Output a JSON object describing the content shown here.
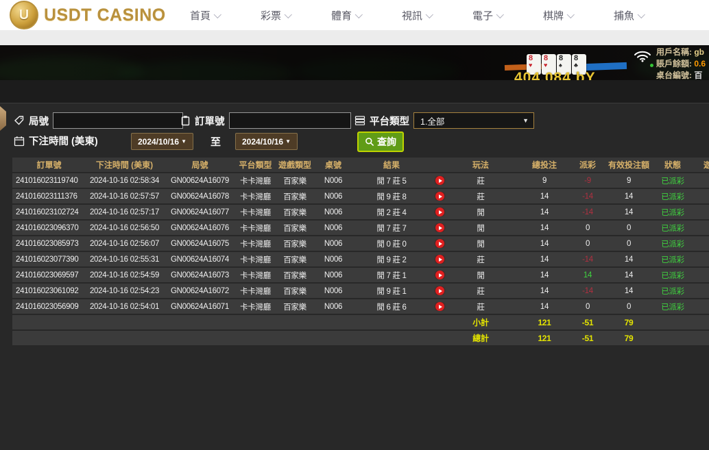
{
  "nav": {
    "logo": {
      "letter": "U",
      "text": "USDT CASINO"
    },
    "items": [
      {
        "label": "首頁"
      },
      {
        "label": "彩票"
      },
      {
        "label": "體育"
      },
      {
        "label": "視訊"
      },
      {
        "label": "電子"
      },
      {
        "label": "棋牌"
      },
      {
        "label": "捕魚"
      }
    ]
  },
  "banner": {
    "cards": [
      {
        "rank": "8",
        "suit": "♥"
      },
      {
        "rank": "8",
        "suit": "♥"
      },
      {
        "rank": "8",
        "suit": "♠"
      },
      {
        "rank": "8",
        "suit": "♣"
      }
    ],
    "amount_text": "404,084 bY",
    "info": {
      "user_label": "用戶名稱:",
      "user_value": "gb",
      "balance_label": "賬戶餘額:",
      "balance_value": "0.6",
      "table_label": "桌台編號:",
      "table_value": "百"
    }
  },
  "filters": {
    "round_label": "局號",
    "order_label": "訂單號",
    "platform_label": "平台類型",
    "platform_value": "1.全部",
    "time_label": "下注時間 (美東)",
    "date_from": "2024/10/16",
    "to_label": "至",
    "date_to": "2024/10/16",
    "search_label": "查詢",
    "caret": "▼"
  },
  "table": {
    "headers": [
      "訂單號",
      "下注時間 (美東)",
      "局號",
      "平台類型",
      "遊戲類型",
      "桌號",
      "結果",
      "",
      "玩法",
      "總投注",
      "派彩",
      "有效投注額",
      "狀態",
      "遊"
    ],
    "rows": [
      {
        "order_id": "241016023119740",
        "bet_time": "2024-10-16 02:58:34",
        "round_id": "GN00624A16079",
        "platform": "卡卡灣廳",
        "game_type": "百家樂",
        "table_no": "N006",
        "result": "閒 7 莊 5",
        "play": "莊",
        "total_bet": "9",
        "payout": "-9",
        "valid_bet": "9",
        "status": "已派彩"
      },
      {
        "order_id": "241016023111376",
        "bet_time": "2024-10-16 02:57:57",
        "round_id": "GN00624A16078",
        "platform": "卡卡灣廳",
        "game_type": "百家樂",
        "table_no": "N006",
        "result": "閒 9 莊 8",
        "play": "莊",
        "total_bet": "14",
        "payout": "-14",
        "valid_bet": "14",
        "status": "已派彩"
      },
      {
        "order_id": "241016023102724",
        "bet_time": "2024-10-16 02:57:17",
        "round_id": "GN00624A16077",
        "platform": "卡卡灣廳",
        "game_type": "百家樂",
        "table_no": "N006",
        "result": "閒 2 莊 4",
        "play": "閒",
        "total_bet": "14",
        "payout": "-14",
        "valid_bet": "14",
        "status": "已派彩"
      },
      {
        "order_id": "241016023096370",
        "bet_time": "2024-10-16 02:56:50",
        "round_id": "GN00624A16076",
        "platform": "卡卡灣廳",
        "game_type": "百家樂",
        "table_no": "N006",
        "result": "閒 7 莊 7",
        "play": "閒",
        "total_bet": "14",
        "payout": "0",
        "valid_bet": "0",
        "status": "已派彩"
      },
      {
        "order_id": "241016023085973",
        "bet_time": "2024-10-16 02:56:07",
        "round_id": "GN00624A16075",
        "platform": "卡卡灣廳",
        "game_type": "百家樂",
        "table_no": "N006",
        "result": "閒 0 莊 0",
        "play": "閒",
        "total_bet": "14",
        "payout": "0",
        "valid_bet": "0",
        "status": "已派彩"
      },
      {
        "order_id": "241016023077390",
        "bet_time": "2024-10-16 02:55:31",
        "round_id": "GN00624A16074",
        "platform": "卡卡灣廳",
        "game_type": "百家樂",
        "table_no": "N006",
        "result": "閒 9 莊 2",
        "play": "莊",
        "total_bet": "14",
        "payout": "-14",
        "valid_bet": "14",
        "status": "已派彩"
      },
      {
        "order_id": "241016023069597",
        "bet_time": "2024-10-16 02:54:59",
        "round_id": "GN00624A16073",
        "platform": "卡卡灣廳",
        "game_type": "百家樂",
        "table_no": "N006",
        "result": "閒 7 莊 1",
        "play": "閒",
        "total_bet": "14",
        "payout": "14",
        "valid_bet": "14",
        "status": "已派彩"
      },
      {
        "order_id": "241016023061092",
        "bet_time": "2024-10-16 02:54:23",
        "round_id": "GN00624A16072",
        "platform": "卡卡灣廳",
        "game_type": "百家樂",
        "table_no": "N006",
        "result": "閒 9 莊 1",
        "play": "莊",
        "total_bet": "14",
        "payout": "-14",
        "valid_bet": "14",
        "status": "已派彩"
      },
      {
        "order_id": "241016023056909",
        "bet_time": "2024-10-16 02:54:01",
        "round_id": "GN00624A16071",
        "platform": "卡卡灣廳",
        "game_type": "百家樂",
        "table_no": "N006",
        "result": "閒 6 莊 6",
        "play": "莊",
        "total_bet": "14",
        "payout": "0",
        "valid_bet": "0",
        "status": "已派彩"
      }
    ],
    "subtotal": {
      "label": "小計",
      "total_bet": "121",
      "payout": "-51",
      "valid_bet": "79"
    },
    "grand_total": {
      "label": "總計",
      "total_bet": "121",
      "payout": "-51",
      "valid_bet": "79"
    }
  },
  "colors": {
    "header_gold": "#d6b069",
    "status_green": "#3fd23f",
    "payout_negative": "#b03040",
    "payout_positive": "#3fd23f",
    "totals_yellow": "#e4e400",
    "search_button_green": "#609c17",
    "search_button_border": "#bfd400",
    "date_button_brown": "#4e3c26",
    "balance_orange": "#ff9b00"
  }
}
